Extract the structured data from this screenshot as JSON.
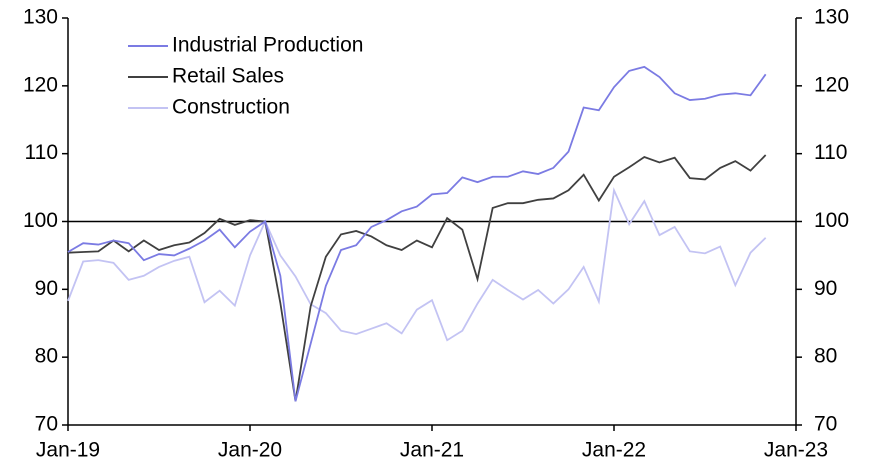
{
  "chart_data": {
    "type": "line",
    "x": [
      0,
      1,
      2,
      3,
      4,
      5,
      6,
      7,
      8,
      9,
      10,
      11,
      12,
      13,
      14,
      15,
      16,
      17,
      18,
      19,
      20,
      21,
      22,
      23,
      24,
      25,
      26,
      27,
      28,
      29,
      30,
      31,
      32,
      33,
      34,
      35,
      36,
      37,
      38,
      39,
      40,
      41,
      42,
      43,
      44,
      45,
      46
    ],
    "xlim": [
      0,
      48
    ],
    "xticks": [
      {
        "value": 0,
        "label": "Jan-19"
      },
      {
        "value": 12,
        "label": "Jan-20"
      },
      {
        "value": 24,
        "label": "Jan-21"
      },
      {
        "value": 36,
        "label": "Jan-22"
      },
      {
        "value": 48,
        "label": "Jan-23"
      }
    ],
    "ylim": [
      70,
      130
    ],
    "yticks": [
      70,
      80,
      90,
      100,
      110,
      120,
      130
    ],
    "y2lim": [
      70,
      130
    ],
    "y2ticks": [
      70,
      80,
      90,
      100,
      110,
      120,
      130
    ],
    "reference_line": 100,
    "legend": "upper left",
    "series": [
      {
        "name": "Industrial Production",
        "color": "#7b7be3",
        "values": [
          95.5,
          96.8,
          96.6,
          97.2,
          96.8,
          94.3,
          95.2,
          95.0,
          96.0,
          97.2,
          98.8,
          96.2,
          98.5,
          100,
          92,
          73.5,
          82,
          90.5,
          95.8,
          96.5,
          99.2,
          100.2,
          101.5,
          102.2,
          104,
          104.2,
          106.5,
          105.8,
          106.6,
          106.6,
          107.4,
          107,
          107.9,
          110.3,
          116.8,
          116.4,
          119.8,
          122.2,
          122.8,
          121.3,
          118.9,
          117.9,
          118.1,
          118.7,
          118.9,
          118.6,
          121.7
        ]
      },
      {
        "name": "Retail Sales",
        "color": "#404040",
        "values": [
          95.4,
          95.5,
          95.6,
          97.2,
          95.6,
          97.2,
          95.8,
          96.5,
          96.9,
          98.3,
          100.4,
          99.5,
          100.2,
          100,
          88,
          73.5,
          87.5,
          94.8,
          98.1,
          98.6,
          97.8,
          96.5,
          95.8,
          97.2,
          96.2,
          100.5,
          98.8,
          91.5,
          102,
          102.7,
          102.7,
          103.2,
          103.4,
          104.6,
          106.9,
          103.1,
          106.6,
          108,
          109.5,
          108.7,
          109.4,
          106.4,
          106.2,
          107.9,
          108.9,
          107.5,
          109.8
        ]
      },
      {
        "name": "Construction",
        "color": "#c3c3f3",
        "values": [
          88.3,
          94.1,
          94.3,
          93.9,
          91.4,
          92,
          93.3,
          94.2,
          94.8,
          88.1,
          89.8,
          87.6,
          95,
          100,
          95,
          91.9,
          87.8,
          86.5,
          83.9,
          83.4,
          84.2,
          85,
          83.5,
          87,
          88.4,
          82.5,
          83.9,
          87.9,
          91.4,
          89.9,
          88.5,
          89.9,
          87.9,
          90,
          93.3,
          88.2,
          104.6,
          99.6,
          103,
          98,
          99.2,
          95.6,
          95.3,
          96.3,
          90.6,
          95.4,
          97.6
        ]
      }
    ]
  }
}
